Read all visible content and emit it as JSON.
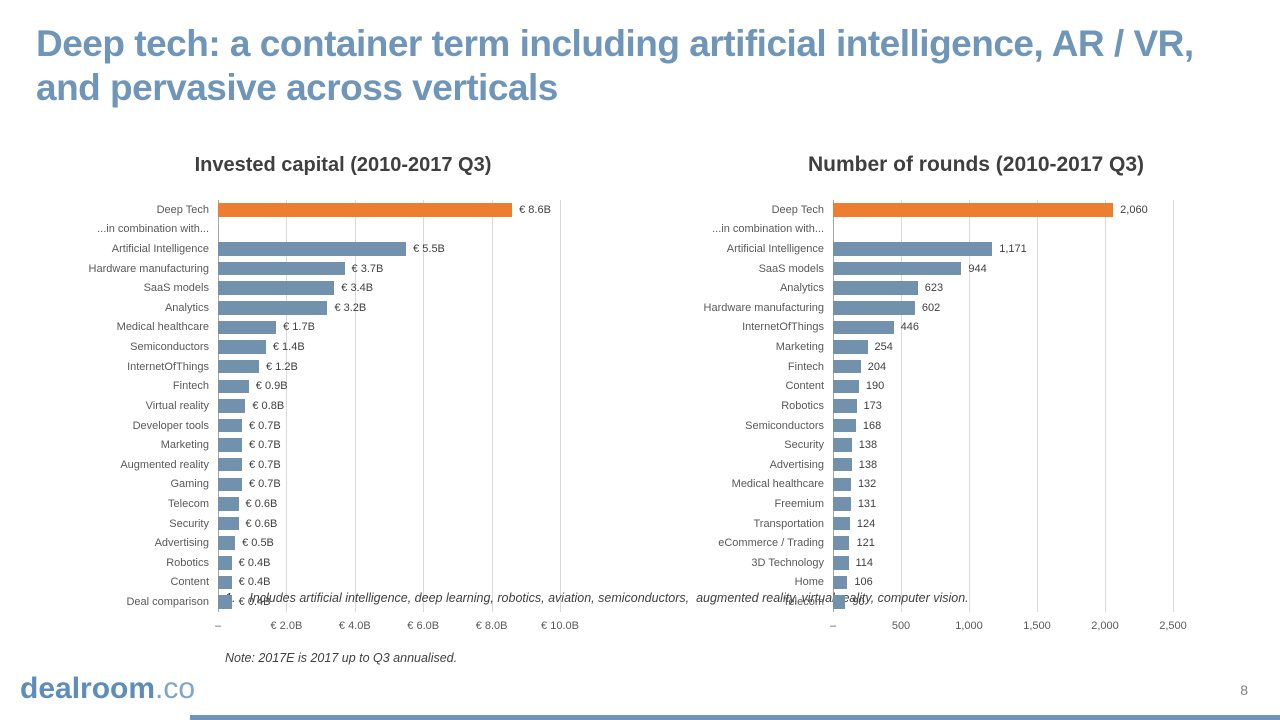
{
  "slide": {
    "title": "Deep tech: a container term including artificial intelligence, AR / VR, and pervasive across verticals",
    "page_number": "8",
    "logo": {
      "main": "dealroom",
      "suffix": ".co"
    },
    "footnote_line1": "1.    Includes artificial intelligence, deep learning, robotics, aviation, semiconductors,  augmented reality, virtual reality, computer vision.",
    "footnote_line2": "Note: 2017E is 2017 up to Q3 annualised."
  },
  "colors": {
    "title_blue": "#6f95b8",
    "bar_blue": "#7191ac",
    "bar_orange": "#ed7d31",
    "gridline": "#d9d9d9",
    "axis_line": "#a6a6a6",
    "category_label": "#595959",
    "value_label": "#404040"
  },
  "chart_data": [
    {
      "type": "bar",
      "orientation": "horizontal",
      "title": "Invested capital (2010-2017 Q3)",
      "xlabel": "",
      "ylabel": "",
      "xlim": [
        0,
        10
      ],
      "x_ticks": [
        "–",
        "€ 2.0B",
        "€ 4.0B",
        "€ 6.0B",
        "€ 8.0B",
        "€ 10.0B"
      ],
      "grid": true,
      "legend": false,
      "highlight_index": 0,
      "categories": [
        "Deep Tech",
        "...in combination with...",
        "Artificial Intelligence",
        "Hardware manufacturing",
        "SaaS models",
        "Analytics",
        "Medical healthcare",
        "Semiconductors",
        "InternetOfThings",
        "Fintech",
        "Virtual reality",
        "Developer tools",
        "Marketing",
        "Augmented reality",
        "Gaming",
        "Telecom",
        "Security",
        "Advertising",
        "Robotics",
        "Content",
        "Deal comparison"
      ],
      "values": [
        8.6,
        null,
        5.5,
        3.7,
        3.4,
        3.2,
        1.7,
        1.4,
        1.2,
        0.9,
        0.8,
        0.7,
        0.7,
        0.7,
        0.7,
        0.6,
        0.6,
        0.5,
        0.4,
        0.4,
        0.4
      ],
      "labels": [
        "€ 8.6B",
        "",
        "€ 5.5B",
        "€ 3.7B",
        "€ 3.4B",
        "€ 3.2B",
        "€ 1.7B",
        "€ 1.4B",
        "€ 1.2B",
        "€ 0.9B",
        "€ 0.8B",
        "€ 0.7B",
        "€ 0.7B",
        "€ 0.7B",
        "€ 0.7B",
        "€ 0.6B",
        "€ 0.6B",
        "€ 0.5B",
        "€ 0.4B",
        "€ 0.4B",
        "€ 0.4B"
      ]
    },
    {
      "type": "bar",
      "orientation": "horizontal",
      "title": "Number of rounds (2010-2017 Q3)",
      "xlabel": "",
      "ylabel": "",
      "xlim": [
        0,
        2500
      ],
      "x_ticks": [
        "–",
        "500",
        "1,000",
        "1,500",
        "2,000",
        "2,500"
      ],
      "grid": true,
      "legend": false,
      "highlight_index": 0,
      "categories": [
        "Deep Tech",
        "...in combination with...",
        "Artificial Intelligence",
        "SaaS models",
        "Analytics",
        "Hardware manufacturing",
        "InternetOfThings",
        "Marketing",
        "Fintech",
        "Content",
        "Robotics",
        "Semiconductors",
        "Security",
        "Advertising",
        "Medical healthcare",
        "Freemium",
        "Transportation",
        "eCommerce / Trading",
        "3D Technology",
        "Home",
        "Telecom"
      ],
      "values": [
        2060,
        null,
        1171,
        944,
        623,
        602,
        446,
        254,
        204,
        190,
        173,
        168,
        138,
        138,
        132,
        131,
        124,
        121,
        114,
        106,
        90
      ],
      "labels": [
        "2,060",
        "",
        "1,171",
        "944",
        "623",
        "602",
        "446",
        "254",
        "204",
        "190",
        "173",
        "168",
        "138",
        "138",
        "132",
        "131",
        "124",
        "121",
        "114",
        "106",
        "90"
      ]
    }
  ]
}
